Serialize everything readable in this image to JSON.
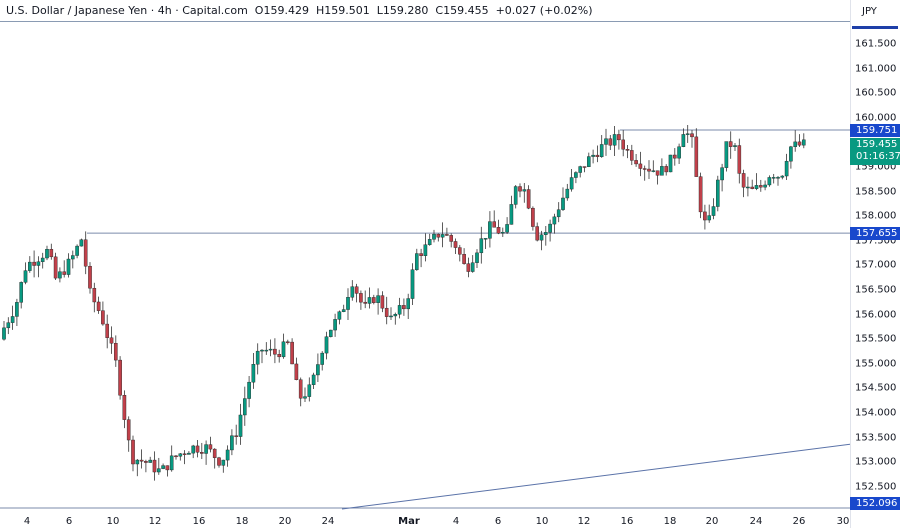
{
  "header": {
    "symbol": "U.S. Dollar / Japanese Yen",
    "sep1": " · ",
    "interval": "4h",
    "sep2": " · ",
    "source": "Capital.com",
    "open_label": "O",
    "open": "159.429",
    "high_label": "H",
    "high": "159.501",
    "low_label": "L",
    "low": "159.280",
    "close_label": "C",
    "close": "159.455",
    "change": "+0.027 (+0.02%)"
  },
  "price_axis": {
    "currency": "JPY",
    "ticks": [
      "161.500",
      "161.000",
      "160.500",
      "160.000",
      "159.000",
      "158.500",
      "158.000",
      "157.500",
      "157.000",
      "156.500",
      "156.000",
      "155.500",
      "155.000",
      "154.500",
      "154.000",
      "153.500",
      "153.000",
      "152.500"
    ],
    "tags": {
      "resistance": "159.751",
      "current_price": "159.455",
      "countdown": "01:16:37",
      "support": "157.655",
      "bottom": "152.096"
    }
  },
  "time_axis": {
    "labels": [
      "4",
      "6",
      "10",
      "12",
      "16",
      "18",
      "20",
      "24",
      "Mar",
      "4",
      "6",
      "10",
      "12",
      "16",
      "18",
      "20",
      "24",
      "26",
      "30"
    ]
  },
  "colors": {
    "up": "#089981",
    "down": "#c0404a",
    "line": "#7b8bab",
    "tag_blue": "#1848cc",
    "tag_green": "#089981"
  },
  "chart_data": {
    "type": "candlestick",
    "title": "U.S. Dollar / Japanese Yen · 4h · Capital.com",
    "ylabel": "JPY",
    "ylim": [
      152.0,
      161.8
    ],
    "grid": false,
    "x_tick_labels": [
      "4",
      "6",
      "10",
      "12",
      "16",
      "18",
      "20",
      "24",
      "Mar",
      "4",
      "6",
      "10",
      "12",
      "16",
      "18",
      "20",
      "24",
      "26",
      "30"
    ],
    "horizontal_lines": [
      {
        "price": 159.751,
        "label": "159.751"
      },
      {
        "price": 157.655,
        "label": "157.655"
      },
      {
        "price": 152.096,
        "label": "152.096"
      }
    ],
    "trendline": {
      "from": {
        "x_label": "24 (Feb)",
        "price": 152.05
      },
      "to": {
        "x_label": "~29 Mar",
        "price": 153.35
      }
    },
    "last": {
      "open": 159.429,
      "high": 159.501,
      "low": 159.28,
      "close": 159.455,
      "change": 0.027,
      "change_pct": 0.02
    },
    "approx_path": [
      {
        "x": "start (~3 Feb)",
        "close": 155.6
      },
      {
        "x": "6 Feb",
        "close": 157.3
      },
      {
        "x": "7 Feb high",
        "close": 157.65
      },
      {
        "x": "12 Feb low",
        "close": 152.8
      },
      {
        "x": "16 Feb",
        "close": 153.3
      },
      {
        "x": "20 Feb",
        "close": 155.4
      },
      {
        "x": "21 Feb",
        "close": 154.1
      },
      {
        "x": "24 Feb",
        "close": 156.8
      },
      {
        "x": "28 Feb",
        "close": 156.0
      },
      {
        "x": "4 Mar",
        "close": 157.4
      },
      {
        "x": "5 Mar",
        "close": 156.8
      },
      {
        "x": "7 Mar",
        "close": 157.6
      },
      {
        "x": "8 Mar",
        "close": 158.8
      },
      {
        "x": "10 Mar",
        "close": 157.6
      },
      {
        "x": "13 Mar",
        "close": 159.3
      },
      {
        "x": "15 Mar high",
        "close": 159.75
      },
      {
        "x": "17 Mar",
        "close": 159.0
      },
      {
        "x": "19 Mar high",
        "close": 159.9
      },
      {
        "x": "20 Mar low",
        "close": 157.7
      },
      {
        "x": "21 Mar",
        "close": 159.5
      },
      {
        "x": "22 Mar",
        "close": 158.6
      },
      {
        "x": "25 Mar",
        "close": 158.8
      },
      {
        "x": "26 Mar (last)",
        "close": 159.455
      }
    ]
  }
}
